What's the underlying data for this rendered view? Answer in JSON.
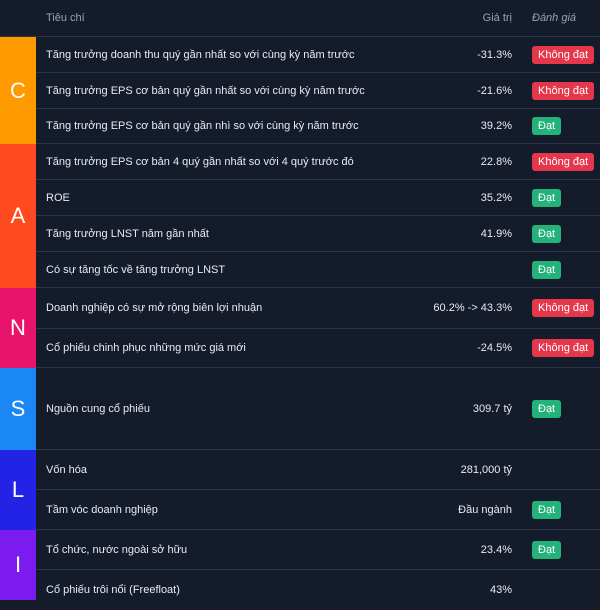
{
  "header": {
    "criteria": "Tiêu chí",
    "value": "Giá trị",
    "evaluation": "Đánh giá"
  },
  "colors": {
    "C": "#ff9900",
    "A": "#ff4a1f",
    "N": "#e8136b",
    "S": "#1b86f5",
    "L": "#2323e6",
    "I": "#7b1bf0",
    "pass": "#23b37a",
    "fail": "#e5374c"
  },
  "bands": [
    {
      "letter": "C",
      "color": "#ff9900"
    },
    {
      "letter": "A",
      "color": "#ff4a1f"
    },
    {
      "letter": "N",
      "color": "#e8136b"
    },
    {
      "letter": "S",
      "color": "#1b86f5"
    },
    {
      "letter": "L",
      "color": "#2323e6"
    },
    {
      "letter": "I",
      "color": "#7b1bf0"
    }
  ],
  "rows": [
    {
      "criteria": "Tăng trưởng doanh thu quý gần nhất so với cùng kỳ năm trước",
      "value": "-31.3%",
      "evaluation": "Không đạt",
      "status": "fail"
    },
    {
      "criteria": "Tăng trưởng EPS cơ bản quý gần nhất so với cùng kỳ năm trước",
      "value": "-21.6%",
      "evaluation": "Không đạt",
      "status": "fail"
    },
    {
      "criteria": "Tăng trưởng EPS cơ bản quý gần nhì so với cùng kỳ năm trước",
      "value": "39.2%",
      "evaluation": "Đạt",
      "status": "pass"
    },
    {
      "criteria": "Tăng trưởng EPS cơ bản 4 quý gần nhất so với 4 quý trước đó",
      "value": "22.8%",
      "evaluation": "Không đạt",
      "status": "fail"
    },
    {
      "criteria": "ROE",
      "value": "35.2%",
      "evaluation": "Đạt",
      "status": "pass"
    },
    {
      "criteria": "Tăng trưởng LNST năm gần nhất",
      "value": "41.9%",
      "evaluation": "Đạt",
      "status": "pass"
    },
    {
      "criteria": "Có sự tăng tốc về tăng trưởng LNST",
      "value": "",
      "evaluation": "Đạt",
      "status": "pass"
    },
    {
      "criteria": "Doanh nghiệp có sự mở rộng biên lợi nhuận",
      "value": "60.2% -> 43.3%",
      "evaluation": "Không đạt",
      "status": "fail"
    },
    {
      "criteria": "Cổ phiếu chinh phục những mức giá mới",
      "value": "-24.5%",
      "evaluation": "Không đạt",
      "status": "fail"
    },
    {
      "criteria": "Nguồn cung cổ phiếu",
      "value": "309.7 tỷ",
      "evaluation": "Đạt",
      "status": "pass"
    },
    {
      "criteria": "Vốn hóa",
      "value": "281,000 tỷ",
      "evaluation": "",
      "status": "none"
    },
    {
      "criteria": "Tầm vóc doanh nghiệp",
      "value": "Đầu ngành",
      "evaluation": "Đạt",
      "status": "pass"
    },
    {
      "criteria": "Tổ chức, nước ngoài sở hữu",
      "value": "23.4%",
      "evaluation": "Đạt",
      "status": "pass"
    },
    {
      "criteria": "Cổ phiếu trôi nổi (Freefloat)",
      "value": "43%",
      "evaluation": "",
      "status": "none"
    }
  ]
}
